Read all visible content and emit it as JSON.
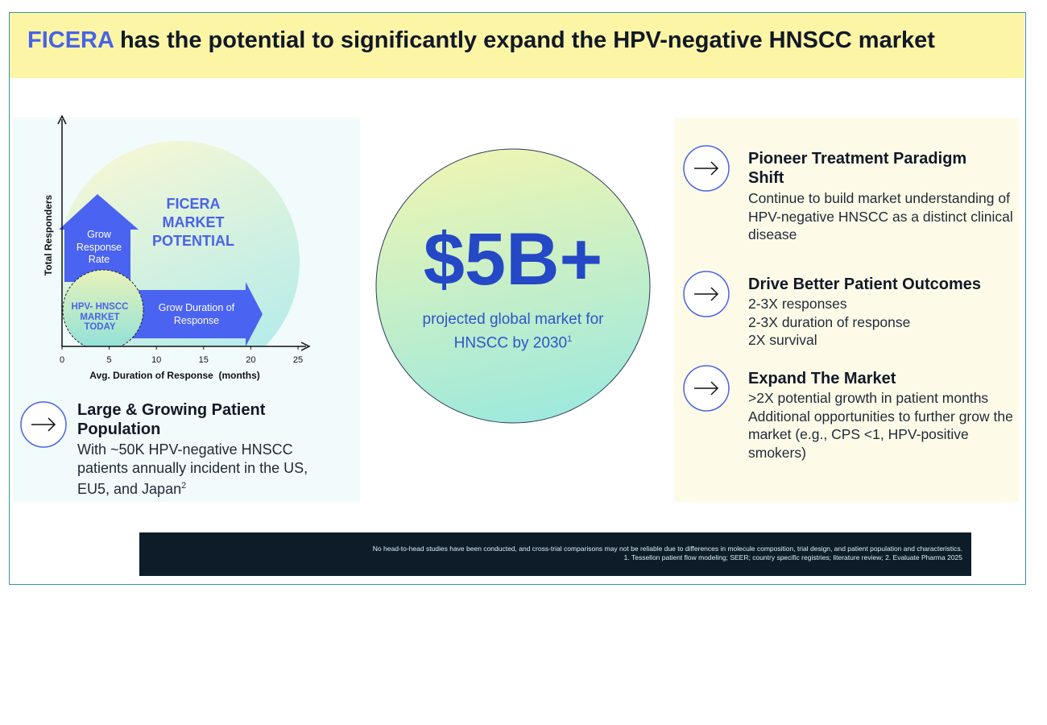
{
  "header": {
    "title_highlight": "FICERA",
    "title": "has the potential to significantly expand the HPV-negative HNSCC market"
  },
  "diagram": {
    "y_label": "Total Responders",
    "x_label": "Avg. Duration of Response  (months)",
    "xticks": [
      0,
      5,
      10,
      15,
      20,
      25
    ],
    "potential_label": "FICERA MARKET POTENTIAL",
    "grow_rate": "Grow Response Rate",
    "grow_duration": "Grow Duration of Response",
    "today": "HPV- HNSCC MARKET TODAY"
  },
  "left_point": {
    "title": "Large & Growing Patient Population",
    "body": "With ~50K HPV-negative HNSCC patients annually incident in the US, EU5, and Japan",
    "sup": "2"
  },
  "center": {
    "value": "$5B+",
    "caption": "projected global market for HNSCC by 2030",
    "sup": "1"
  },
  "right_points": [
    {
      "title": "Pioneer Treatment Paradigm Shift",
      "lines": [
        "Continue to build market understanding of HPV-negative HNSCC as a distinct clinical disease"
      ]
    },
    {
      "title": "Drive Better Patient Outcomes",
      "lines": [
        "2-3X responses",
        "2-3X duration of response",
        "2X survival"
      ]
    },
    {
      "title": "Expand The Market",
      "lines": [
        ">2X potential growth in patient months",
        "Additional opportunities to further grow the market (e.g., CPS <1, HPV-positive smokers)"
      ]
    }
  ],
  "footer": {
    "disclaimer": "No head-to-head studies have been conducted, and cross-trial comparisons may not be reliable due to differences in molecule composition, trial design, and patient population and characteristics.",
    "sources": "1. Tessellon patient flow modeling; SEER; country specific registries; literature review; 2. Evaluate Pharma 2025"
  }
}
